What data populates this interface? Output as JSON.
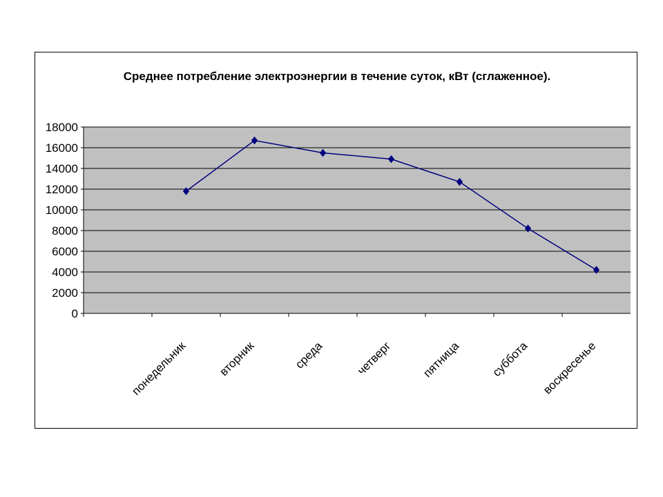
{
  "chart_data": {
    "type": "line",
    "title": "Среднее потребление электроэнергии в течение суток, кВт (сглаженное).",
    "xlabel": "",
    "ylabel": "",
    "categories": [
      "понедельник",
      "вторник",
      "среда",
      "четверг",
      "пятница",
      "суббота",
      "воскресенье"
    ],
    "series": [
      {
        "values": [
          11800,
          16700,
          15500,
          14900,
          12700,
          8200,
          4200
        ]
      }
    ],
    "ylim": [
      0,
      18000
    ],
    "yticks": [
      "0",
      "2000",
      "4000",
      "6000",
      "8000",
      "10000",
      "12000",
      "14000",
      "16000",
      "18000"
    ],
    "grid": true,
    "legend": "none",
    "colors": {
      "plot_area": "#c0c0c0",
      "line": "#000080",
      "marker": "#000080",
      "gridline": "#000000"
    }
  }
}
